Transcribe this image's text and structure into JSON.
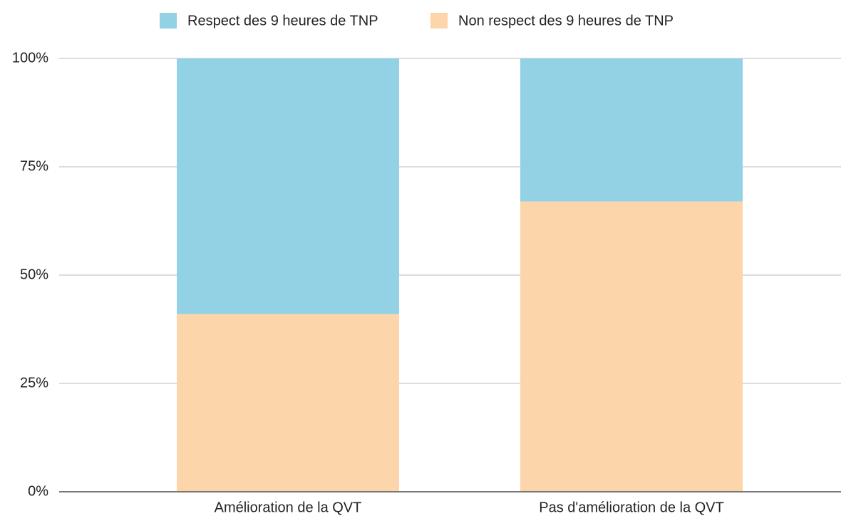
{
  "chart_data": {
    "type": "stacked_bar",
    "categories": [
      "Amélioration de la QVT",
      "Pas d'amélioration de la QVT"
    ],
    "series": [
      {
        "name": "Respect des 9 heures de TNP",
        "color": "#93d1e4",
        "values": [
          59,
          33
        ]
      },
      {
        "name": "Non respect des 9 heures de TNP",
        "color": "#fdd5aa",
        "values": [
          41,
          67
        ]
      }
    ],
    "ylim": [
      0,
      100
    ],
    "yticks": [
      {
        "value": 0,
        "label": "0%"
      },
      {
        "value": 25,
        "label": "25%"
      },
      {
        "value": 50,
        "label": "50%"
      },
      {
        "value": 75,
        "label": "75%"
      },
      {
        "value": 100,
        "label": "100%"
      }
    ],
    "grid": true,
    "legend": "top"
  }
}
